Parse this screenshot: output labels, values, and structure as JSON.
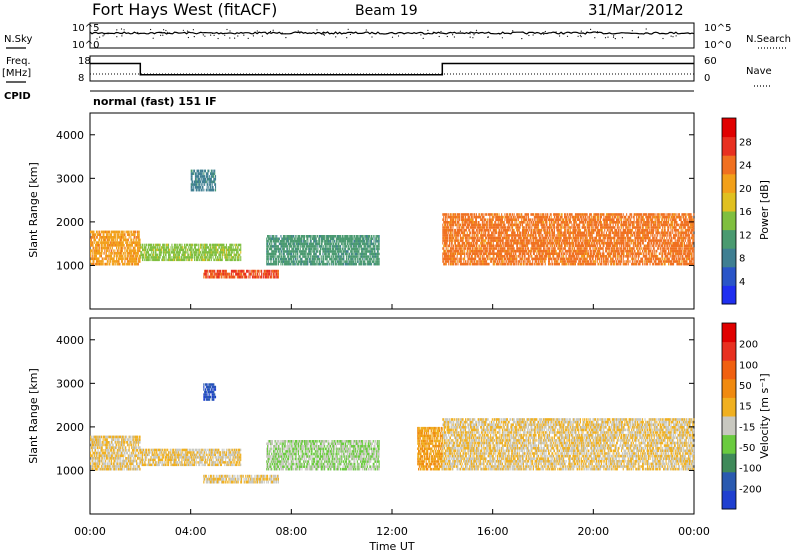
{
  "header": {
    "station": "Fort Hays West (fitACF)",
    "beam": "Beam 19",
    "date": "31/Mar/2012",
    "mode": "normal (fast) 151 IF"
  },
  "left_labels": {
    "nsky": "N.Sky",
    "freq": "Freq.",
    "freq_unit": "[MHz]",
    "cpid": "CPID"
  },
  "right_labels": {
    "nsearch": "N.Search",
    "nave": "Nave"
  },
  "noise_panel": {
    "left_ticks": [
      "10^5",
      "10^0"
    ],
    "right_ticks": [
      "10^5",
      "10^0"
    ]
  },
  "freq_panel": {
    "left_ticks": [
      "18",
      "8"
    ],
    "right_ticks": [
      "60",
      "0"
    ]
  },
  "colors": {
    "power_scale": [
      "#1f2ff0",
      "#2a55c8",
      "#3f7f92",
      "#4a9a70",
      "#7fbf3f",
      "#e0c020",
      "#f2a01a",
      "#f07020",
      "#e83020",
      "#e00000"
    ],
    "velocity_scale": [
      "#1f3fd0",
      "#2a5ab0",
      "#3f8a5a",
      "#6acb3f",
      "#c8c8c0",
      "#f0b020",
      "#f08a10",
      "#f06010",
      "#e83020",
      "#e00000"
    ]
  },
  "chart_data": [
    {
      "type": "line",
      "title": "",
      "subplots": [
        {
          "name": "noise",
          "series": [
            {
              "name": "N.Sky",
              "x": [
                "00:00",
                "24:00"
              ],
              "y": [
                1000,
                1000
              ]
            }
          ]
        },
        {
          "name": "frequency",
          "series": [
            {
              "name": "Freq.",
              "x": [
                "00:00",
                "02:00",
                "02:00",
                "14:00",
                "14:00",
                "24:00"
              ],
              "y": [
                15,
                15,
                10.5,
                10.5,
                15,
                15
              ]
            }
          ],
          "ylim": [
            8,
            18
          ]
        }
      ],
      "xlim": [
        "00:00",
        "24:00"
      ]
    },
    {
      "type": "heatmap",
      "title": "Power",
      "ylabel": "Slant Range [km]",
      "ylim": [
        0,
        4500
      ],
      "y_ticks": [
        "4000",
        "3000",
        "2000",
        "1000"
      ],
      "xlim": [
        "00:00",
        "24:00"
      ],
      "colorbar": {
        "label": "Power [dB]",
        "ticks": [
          "28",
          "24",
          "20",
          "16",
          "12",
          "8",
          "4"
        ],
        "range": [
          0,
          30
        ]
      },
      "echo_regions": [
        {
          "t_start": 0.0,
          "t_end": 2.0,
          "range_low": 1000,
          "range_high": 1800,
          "value": 20
        },
        {
          "t_start": 2.0,
          "t_end": 6.0,
          "range_low": 1100,
          "range_high": 1500,
          "value": 14
        },
        {
          "t_start": 4.0,
          "t_end": 5.0,
          "range_low": 2700,
          "range_high": 3200,
          "value": 8
        },
        {
          "t_start": 4.5,
          "t_end": 7.5,
          "range_low": 700,
          "range_high": 900,
          "value": 24
        },
        {
          "t_start": 7.0,
          "t_end": 11.5,
          "range_low": 1000,
          "range_high": 1700,
          "value": 10
        },
        {
          "t_start": 14.0,
          "t_end": 24.0,
          "range_low": 1000,
          "range_high": 2200,
          "value": 22
        }
      ]
    },
    {
      "type": "heatmap",
      "title": "Velocity",
      "ylabel": "Slant Range [km]",
      "ylim": [
        0,
        4500
      ],
      "y_ticks": [
        "4000",
        "3000",
        "2000",
        "1000"
      ],
      "xlim": [
        "00:00",
        "24:00"
      ],
      "x_ticks": [
        "00:00",
        "04:00",
        "08:00",
        "12:00",
        "16:00",
        "20:00",
        "00:00"
      ],
      "xlabel": "Time UT",
      "colorbar": {
        "label": "Velocity [m s⁻¹]",
        "ticks": [
          "200",
          "100",
          "50",
          "15",
          "-15",
          "-50",
          "-100",
          "-200"
        ],
        "range": [
          -250,
          250
        ]
      },
      "echo_regions": [
        {
          "t_start": 0.0,
          "t_end": 2.0,
          "range_low": 1000,
          "range_high": 1800,
          "value": 0
        },
        {
          "t_start": 2.0,
          "t_end": 6.0,
          "range_low": 1100,
          "range_high": 1500,
          "value": 0
        },
        {
          "t_start": 4.5,
          "t_end": 5.0,
          "range_low": 2600,
          "range_high": 3000,
          "value": -200
        },
        {
          "t_start": 4.5,
          "t_end": 7.5,
          "range_low": 700,
          "range_high": 900,
          "value": 0
        },
        {
          "t_start": 7.0,
          "t_end": 11.5,
          "range_low": 1000,
          "range_high": 1700,
          "value": -50
        },
        {
          "t_start": 13.0,
          "t_end": 14.0,
          "range_low": 1000,
          "range_high": 2000,
          "value": 50
        },
        {
          "t_start": 14.0,
          "t_end": 24.0,
          "range_low": 1000,
          "range_high": 2200,
          "value": 0
        }
      ]
    }
  ]
}
